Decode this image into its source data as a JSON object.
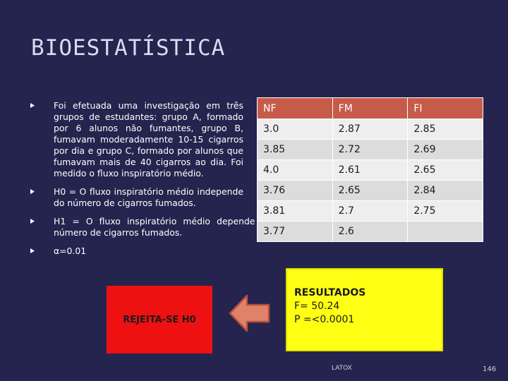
{
  "title": "BIOESTATÍSTICA",
  "bullets": [
    "Foi efetuada uma investigação em três grupos de estudantes: grupo A, formado por 6 alunos não fumantes, grupo B, fumavam moderadamente 10-15 cigarros por dia e grupo C, formado por alunos que fumavam mais de 40 cigarros ao dia. Foi medido o fluxo inspiratório médio.",
    "H0 = O fluxo inspiratório médio independe do número de cigarros fumados.",
    "H1 = O fluxo inspiratório médio depende do número de cigarros fumados.",
    "α=0.01"
  ],
  "table": {
    "headers": [
      "NF",
      "FM",
      "FI"
    ],
    "rows": [
      [
        "3.0",
        "2.87",
        "2.85"
      ],
      [
        "3.85",
        "2.72",
        "2.69"
      ],
      [
        "4.0",
        "2.61",
        "2.65"
      ],
      [
        "3.76",
        "2.65",
        "2.84"
      ],
      [
        "3.81",
        "2.7",
        "2.75"
      ],
      [
        "3.77",
        "2.6",
        ""
      ]
    ]
  },
  "reject_label": "REJEITA-SE H0",
  "results": {
    "heading": "RESULTADOS",
    "f_value": "F= 50.24",
    "p_value": "P =<0.0001"
  },
  "footer": "LATOX",
  "page_number": "146",
  "colors": {
    "background": "#24244e",
    "table_header": "#c75b4a",
    "reject_box": "#ee1111",
    "results_box": "#ffff14",
    "arrow": "#e0826a"
  },
  "icons": {
    "arrow": "left-arrow-icon",
    "bullet": "bullet-triangle-icon"
  }
}
